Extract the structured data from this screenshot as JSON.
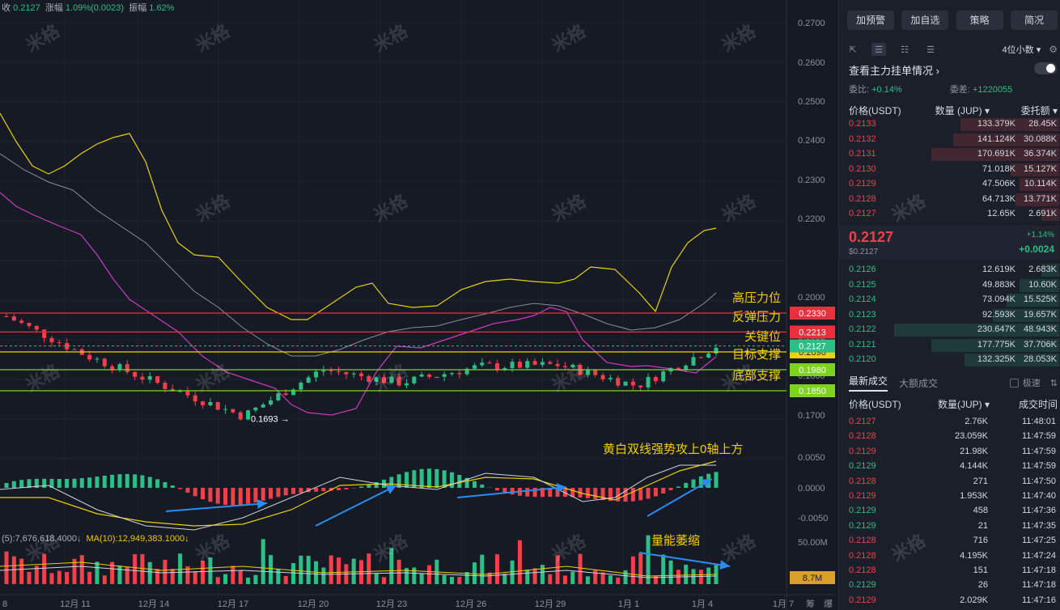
{
  "header_stats": {
    "close_label": "收",
    "close": "0.2127",
    "change_label": "涨幅",
    "change": "1.09%(0.0023)",
    "amp_label": "振幅",
    "amp": "1.62%"
  },
  "volume_stats": {
    "ma5": "(5):7,676,618.4000↓",
    "ma10": "MA(10):12,949,383.1000↓"
  },
  "watermark": "米格",
  "chart_data": {
    "type": "candlestick",
    "price_axis": [
      "0.2700",
      "0.2600",
      "0.2500",
      "0.2400",
      "0.2300",
      "0.2200",
      "0.2000",
      "0.1900",
      "0.1800",
      "0.1700"
    ],
    "ylim": [
      0.165,
      0.272
    ],
    "macd_axis": [
      "0.0050",
      "0.0000",
      "-0.0050"
    ],
    "volume_axis": [
      "50.00M"
    ],
    "x_ticks": [
      "8",
      "12月 11",
      "12月 14",
      "12月 17",
      "12月 20",
      "12月 23",
      "12月 26",
      "12月 29",
      "1月 1",
      "1月 4",
      "1月 7"
    ],
    "corner_labels": [
      "筹",
      "爆"
    ],
    "levels": [
      {
        "name": "高压力位",
        "price": "0.2330",
        "value": 0.233,
        "color": "#e8313c"
      },
      {
        "name": "反弹压力",
        "price": "0.2213",
        "value": 0.2213,
        "color": "#e8313c"
      },
      {
        "name": "关键位",
        "price": "0.2090",
        "value": 0.209,
        "color": "#f0d000"
      },
      {
        "name": "目标支撑",
        "price": "0.1980",
        "value": 0.198,
        "color": "#7ed321"
      },
      {
        "name": "底部支撑",
        "price": "0.1850",
        "value": 0.185,
        "color": "#7ed321"
      }
    ],
    "current_price": {
      "label": "0.2127",
      "value": 0.2127
    },
    "low_marker": {
      "label": "0.1693",
      "value": 0.1693
    },
    "volume_badge": "8.7M",
    "annotations": {
      "macd": "黄白双线强势攻上0轴上方",
      "volume": "量能萎缩"
    },
    "key_closes": [
      {
        "date": "12月 11",
        "close": 0.231
      },
      {
        "date": "12月 14",
        "close": 0.207
      },
      {
        "date": "12月 17",
        "close": 0.188
      },
      {
        "date": "12月 19",
        "close": 0.1693
      },
      {
        "date": "12月 21",
        "close": 0.198
      },
      {
        "date": "12月 24",
        "close": 0.19
      },
      {
        "date": "12月 27",
        "close": 0.2
      },
      {
        "date": "12月 29",
        "close": 0.201
      },
      {
        "date": "1月 1",
        "close": 0.188
      },
      {
        "date": "1月 4",
        "close": 0.2127
      }
    ]
  },
  "panel": {
    "buttons": [
      "加预警",
      "加自选",
      "策略",
      "简况"
    ],
    "decimals": "4位小数",
    "orderbook_title": "查看主力挂单情况",
    "wei_bi_label": "委比:",
    "wei_bi": "+0.14%",
    "wei_cha_label": "委差:",
    "wei_cha": "+1220055",
    "book_header": [
      "价格(USDT)",
      "数量 (JUP)",
      "委托额"
    ],
    "asks": [
      {
        "price": "0.2133",
        "qty": "133.379K",
        "total": "28.45K",
        "depth": 0.45
      },
      {
        "price": "0.2132",
        "qty": "141.124K",
        "total": "30.088K",
        "depth": 0.48
      },
      {
        "price": "0.2131",
        "qty": "170.691K",
        "total": "36.374K",
        "depth": 0.58
      },
      {
        "price": "0.2130",
        "qty": "71.018K",
        "total": "15.127K",
        "depth": 0.22
      },
      {
        "price": "0.2129",
        "qty": "47.506K",
        "total": "10.114K",
        "depth": 0.18
      },
      {
        "price": "0.2128",
        "qty": "64.713K",
        "total": "13.771K",
        "depth": 0.2
      },
      {
        "price": "0.2127",
        "qty": "12.65K",
        "total": "2.691K",
        "depth": 0.08
      }
    ],
    "last": {
      "price": "0.2127",
      "usd": "$0.2127",
      "pct": "+1.14%",
      "chg": "+0.0024"
    },
    "bids": [
      {
        "price": "0.2126",
        "qty": "12.619K",
        "total": "2.683K",
        "depth": 0.08
      },
      {
        "price": "0.2125",
        "qty": "49.883K",
        "total": "10.60K",
        "depth": 0.18
      },
      {
        "price": "0.2124",
        "qty": "73.094K",
        "total": "15.525K",
        "depth": 0.24
      },
      {
        "price": "0.2123",
        "qty": "92.593K",
        "total": "19.657K",
        "depth": 0.3
      },
      {
        "price": "0.2122",
        "qty": "230.647K",
        "total": "48.943K",
        "depth": 0.75
      },
      {
        "price": "0.2121",
        "qty": "177.775K",
        "total": "37.706K",
        "depth": 0.58
      },
      {
        "price": "0.2120",
        "qty": "132.325K",
        "total": "28.053K",
        "depth": 0.43
      }
    ],
    "tabs": [
      "最新成交",
      "大额成交"
    ],
    "checkbox": "极速",
    "trade_header": [
      "价格(USDT)",
      "数量(JUP)",
      "成交时间"
    ],
    "trades": [
      {
        "price": "0.2127",
        "qty": "2.76K",
        "time": "11:48:01",
        "side": "red"
      },
      {
        "price": "0.2128",
        "qty": "23.059K",
        "time": "11:47:59",
        "side": "red"
      },
      {
        "price": "0.2129",
        "qty": "21.98K",
        "time": "11:47:59",
        "side": "red"
      },
      {
        "price": "0.2129",
        "qty": "4.144K",
        "time": "11:47:59",
        "side": "green"
      },
      {
        "price": "0.2128",
        "qty": "271",
        "time": "11:47:50",
        "side": "red"
      },
      {
        "price": "0.2129",
        "qty": "1.953K",
        "time": "11:47:40",
        "side": "red"
      },
      {
        "price": "0.2129",
        "qty": "458",
        "time": "11:47:36",
        "side": "green"
      },
      {
        "price": "0.2129",
        "qty": "21",
        "time": "11:47:35",
        "side": "green"
      },
      {
        "price": "0.2128",
        "qty": "716",
        "time": "11:47:25",
        "side": "red"
      },
      {
        "price": "0.2128",
        "qty": "4.195K",
        "time": "11:47:24",
        "side": "red"
      },
      {
        "price": "0.2128",
        "qty": "151",
        "time": "11:47:18",
        "side": "red"
      },
      {
        "price": "0.2129",
        "qty": "26",
        "time": "11:47:18",
        "side": "green"
      },
      {
        "price": "0.2129",
        "qty": "2.029K",
        "time": "11:47:16",
        "side": "red"
      }
    ]
  }
}
